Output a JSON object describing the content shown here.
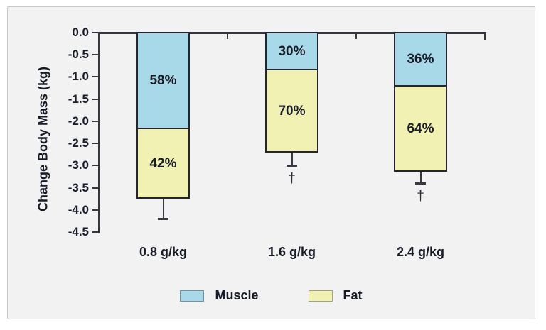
{
  "chart_data": {
    "type": "stacked-bar",
    "title": "",
    "ylabel": "Change Body Mass (kg)",
    "xlabel": "",
    "ylim": [
      0,
      -4.5
    ],
    "y_tick_labels": [
      "0.0",
      "-0.5",
      "-1.0",
      "-1.5",
      "-2.0",
      "-2.5",
      "-3.0",
      "-3.5",
      "-4.0",
      "-4.5"
    ],
    "categories": [
      "0.8 g/kg",
      "1.6 g/kg",
      "2.4 g/kg"
    ],
    "series": [
      {
        "name": "Muscle",
        "color": "#a8d9e9",
        "values_kg": [
          -2.18,
          -0.85,
          -1.22
        ],
        "percent_labels": [
          "58%",
          "30%",
          "36%"
        ]
      },
      {
        "name": "Fat",
        "color": "#f0f1b2",
        "values_kg": [
          -1.57,
          -1.85,
          -1.92
        ],
        "percent_labels": [
          "42%",
          "70%",
          "64%"
        ]
      }
    ],
    "totals_kg": [
      -3.75,
      -2.7,
      -3.14
    ],
    "error_bar_tips_kg": [
      -4.2,
      -3.0,
      -3.4
    ],
    "significance_markers": [
      {
        "category": "1.6 g/kg",
        "symbol": "†",
        "y_kg": -3.3
      },
      {
        "category": "2.4 g/kg",
        "symbol": "†",
        "y_kg": -3.7
      }
    ],
    "legend": {
      "position": "bottom-center",
      "items": [
        {
          "label": "Muscle",
          "color": "#a8d9e9"
        },
        {
          "label": "Fat",
          "color": "#f0f1b2"
        }
      ]
    },
    "grid": "off"
  },
  "colors": {
    "muscle": "#a8d9e9",
    "fat": "#f0f1b2",
    "axis": "#35353f",
    "bar_border": "#24252e",
    "text": "#181c28",
    "panel_background": "#f2f2f2",
    "panel_border": "#c9c9c9",
    "page_background": "#ffffff"
  }
}
